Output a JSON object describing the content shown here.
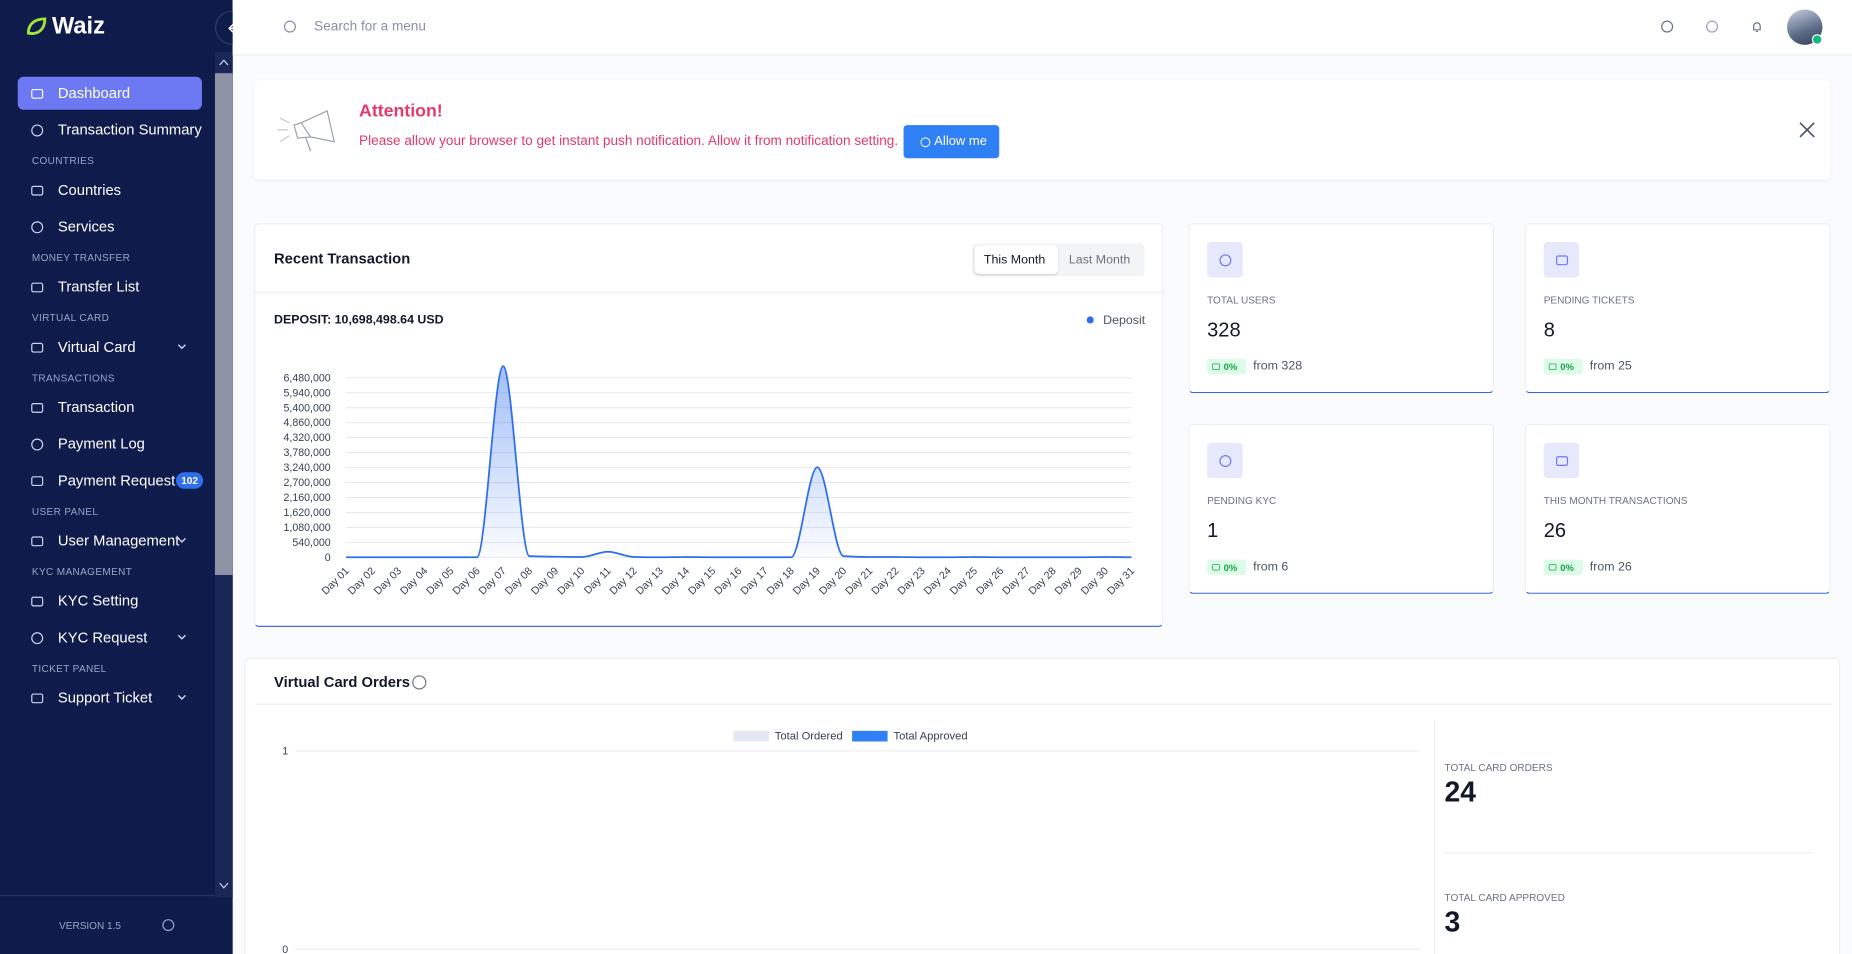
{
  "sidebar": {
    "logo": "Waiz",
    "menu": [
      {
        "items": [
          {
            "label": "Dashboard",
            "active": true
          },
          {
            "label": "Transaction Summary"
          }
        ]
      },
      {
        "title": "COUNTRIES",
        "items": [
          {
            "label": "Countries"
          },
          {
            "label": "Services"
          }
        ]
      },
      {
        "title": "MONEY TRANSFER",
        "items": [
          {
            "label": "Transfer List"
          }
        ]
      },
      {
        "title": "VIRTUAL CARD",
        "items": [
          {
            "label": "Virtual Card",
            "submenu": true
          }
        ]
      },
      {
        "title": "TRANSACTIONS",
        "items": [
          {
            "label": "Transaction"
          },
          {
            "label": "Payment Log"
          },
          {
            "label": "Payment Request",
            "badge": 102
          }
        ]
      },
      {
        "title": "USER PANEL",
        "items": [
          {
            "label": "User Management",
            "submenu": true
          }
        ]
      },
      {
        "title": "KYC MANAGEMENT",
        "items": [
          {
            "label": "KYC Setting"
          },
          {
            "label": "KYC Request",
            "submenu": true
          }
        ]
      },
      {
        "title": "TICKET PANEL",
        "items": [
          {
            "label": "Support Ticket",
            "submenu": true
          }
        ]
      }
    ],
    "version": "VERSION 1.5"
  },
  "topbar": {
    "search_placeholder": "Search for a menu"
  },
  "alert": {
    "title": "Attention!",
    "message": "Please allow your browser to get instant push notification. Allow it from notification setting.",
    "button": "Allow me"
  },
  "recent_transaction": {
    "title": "Recent Transaction",
    "tabs": [
      "This Month",
      "Last Month"
    ],
    "deposit": "DEPOSIT: 10,698,498.64 USD",
    "chart": {
      "type": "line",
      "categories": [
        "Day 01",
        "Day 02",
        "Day 03",
        "Day 04",
        "Day 05",
        "Day 06",
        "Day 07",
        "Day 08",
        "Day 09",
        "Day 10",
        "Day 11",
        "Day 12",
        "Day 13",
        "Day 14",
        "Day 15",
        "Day 16",
        "Day 17",
        "Day 18",
        "Day 19",
        "Day 20",
        "Day 21",
        "Day 22",
        "Day 23",
        "Day 24",
        "Day 25",
        "Day 26",
        "Day 27",
        "Day 28",
        "Day 29",
        "Day 30",
        "Day 31"
      ],
      "series": [
        {
          "name": "Deposit",
          "color": "#2f6fed",
          "values": [
            0,
            0,
            0,
            0,
            0,
            0,
            6900000,
            40000,
            20000,
            10000,
            200000,
            10000,
            0,
            10000,
            0,
            0,
            0,
            0,
            3250000,
            40000,
            10000,
            10000,
            0,
            0,
            10000,
            0,
            0,
            0,
            0,
            10000,
            0
          ]
        }
      ],
      "ylim": [
        0,
        6480000
      ],
      "yticks": [
        0,
        {
          "value": 540000,
          "label": "540,000"
        },
        {
          "value": 1080000,
          "label": "1,080,000"
        },
        {
          "value": 1620000,
          "label": "1,620,000"
        },
        {
          "value": 2160000,
          "label": "2,160,000"
        },
        {
          "value": 2700000,
          "label": "2,700,000"
        },
        {
          "value": 3240000,
          "label": "3,240,000"
        },
        {
          "value": 3780000,
          "label": "3,780,000"
        },
        {
          "value": 4320000,
          "label": "4,320,000"
        },
        {
          "value": 4860000,
          "label": "4,860,000"
        },
        {
          "value": 5400000,
          "label": "5,400,000"
        },
        {
          "value": 5940000,
          "label": "5,940,000"
        },
        {
          "value": 6480000,
          "label": "6,480,000"
        }
      ],
      "grid": true
    }
  },
  "stats": [
    {
      "label": "TOTAL USERS",
      "value": 328,
      "change": "0%",
      "from": "from 328"
    },
    {
      "label": "PENDING TICKETS",
      "value": 8,
      "change": "0%",
      "from": "from 25"
    },
    {
      "label": "PENDING KYC",
      "value": 1,
      "change": "0%",
      "from": "from 6"
    },
    {
      "label": "THIS MONTH TRANSACTIONS",
      "value": 26,
      "change": "0%",
      "from": "from 26"
    }
  ],
  "virtual_card_orders": {
    "title": "Virtual Card Orders",
    "chart": {
      "type": "bar",
      "series": [
        {
          "name": "Total Ordered",
          "color": "#e4e7f3"
        },
        {
          "name": "Total Approved",
          "color": "#2f7ff5"
        }
      ],
      "ylim": [
        0,
        1
      ],
      "yticks": [
        0,
        1
      ],
      "grid": true
    },
    "totals": [
      {
        "label": "TOTAL CARD ORDERS",
        "value": 24
      },
      {
        "label": "TOTAL CARD APPROVED",
        "value": 3
      }
    ]
  }
}
